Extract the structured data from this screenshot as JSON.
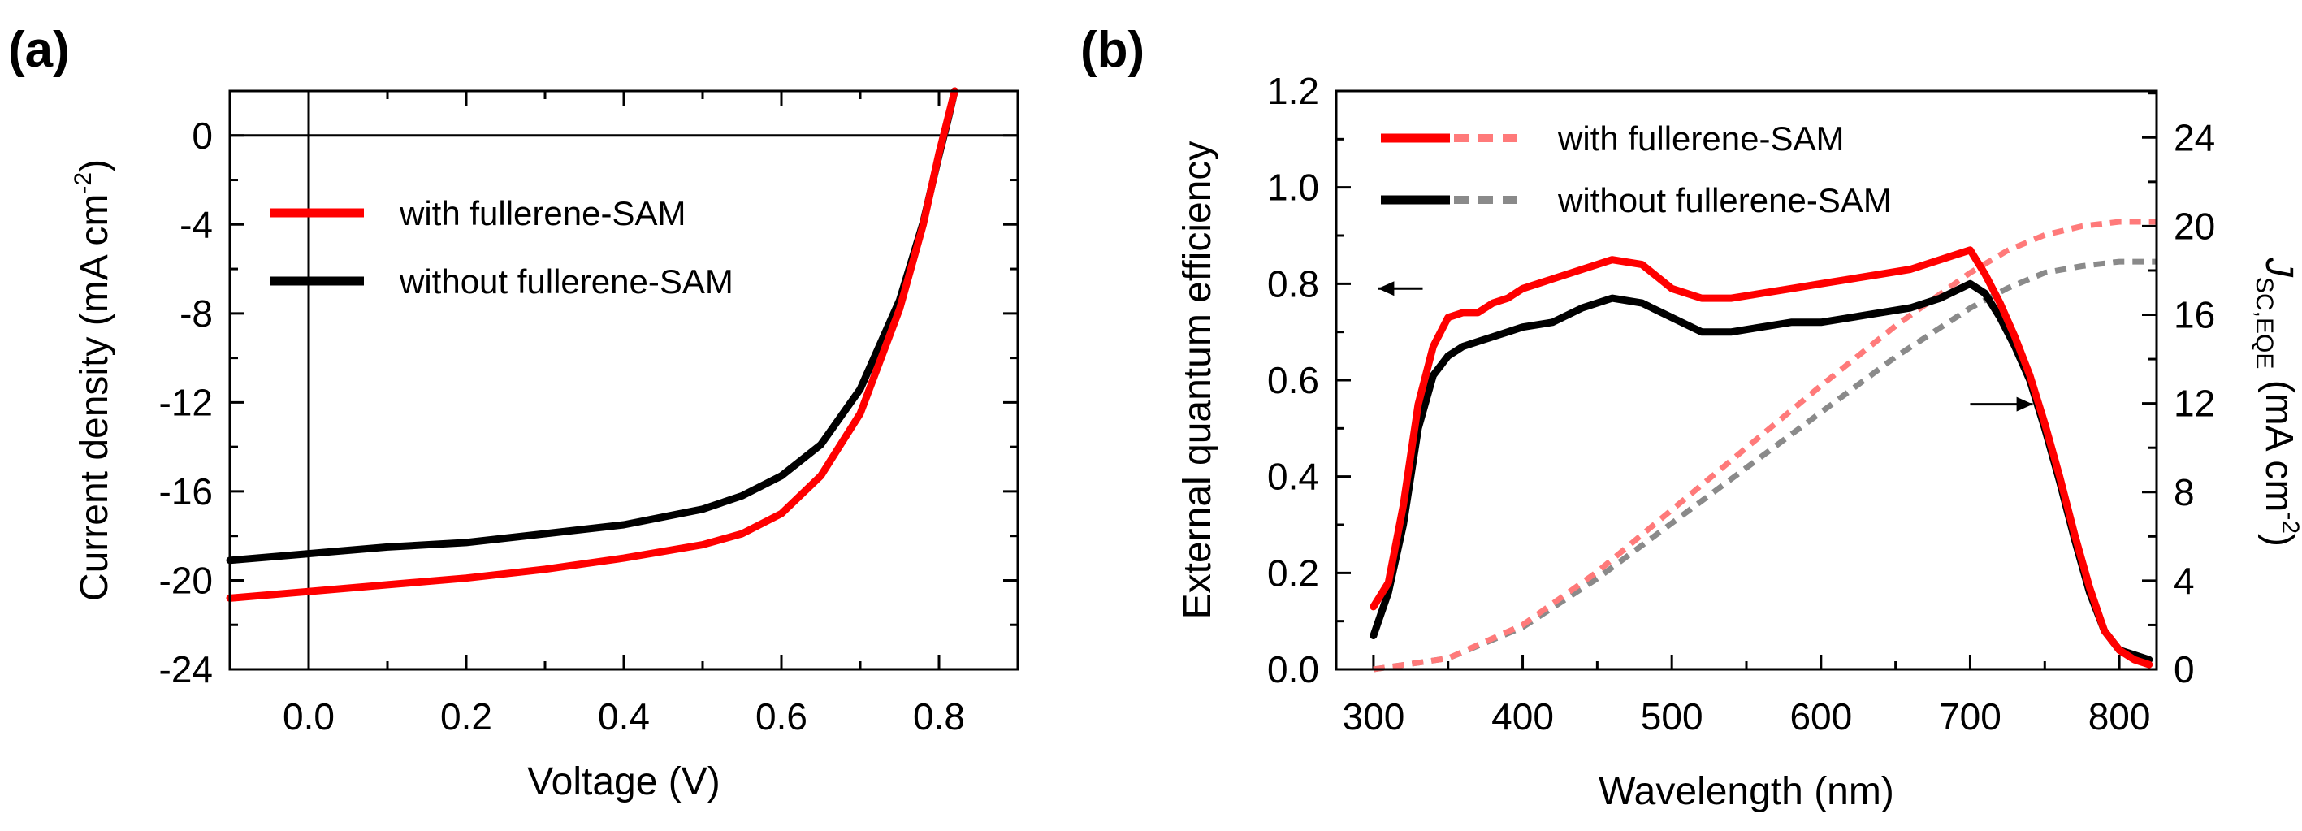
{
  "chart_data": [
    {
      "panel_label": "(a)",
      "type": "line",
      "title": "",
      "xlabel": "Voltage (V)",
      "ylabel": "Current density (mA cm",
      "ylabel_sup": "-2",
      "ylabel_end": ")",
      "xlim": [
        -0.1,
        0.9
      ],
      "ylim": [
        -24,
        2
      ],
      "xticks": [
        0.0,
        0.2,
        0.4,
        0.6,
        0.8
      ],
      "xtick_labels": [
        "0.0",
        "0.2",
        "0.4",
        "0.6",
        "0.8"
      ],
      "yticks": [
        0,
        -4,
        -8,
        -12,
        -16,
        -20,
        -24
      ],
      "ytick_labels": [
        "0",
        "-4",
        "-8",
        "-12",
        "-16",
        "-20",
        "-24"
      ],
      "grid": false,
      "legend_position": "upper-left",
      "reference_lines": {
        "y": 0,
        "x": 0
      },
      "series": [
        {
          "name": "with fullerene-SAM",
          "color": "#ff0000",
          "x": [
            -0.1,
            0.0,
            0.1,
            0.2,
            0.3,
            0.4,
            0.5,
            0.55,
            0.6,
            0.65,
            0.7,
            0.75,
            0.78,
            0.8,
            0.81,
            0.82
          ],
          "y": [
            -20.8,
            -20.5,
            -20.2,
            -19.9,
            -19.5,
            -19.0,
            -18.4,
            -17.9,
            -17.0,
            -15.3,
            -12.5,
            -7.8,
            -4.0,
            -0.8,
            0.6,
            2.0
          ]
        },
        {
          "name": "without fullerene-SAM",
          "color": "#000000",
          "x": [
            -0.1,
            0.0,
            0.1,
            0.2,
            0.3,
            0.4,
            0.5,
            0.55,
            0.6,
            0.65,
            0.7,
            0.75,
            0.78,
            0.8,
            0.81,
            0.82
          ],
          "y": [
            -19.1,
            -18.8,
            -18.5,
            -18.3,
            -17.9,
            -17.5,
            -16.8,
            -16.2,
            -15.3,
            -13.9,
            -11.4,
            -7.4,
            -3.9,
            -0.9,
            0.5,
            2.0
          ]
        }
      ]
    },
    {
      "panel_label": "(b)",
      "type": "line",
      "title": "",
      "xlabel": "Wavelength (nm)",
      "ylabel": "External  quantum efficiency",
      "y2label_main": "J",
      "y2label_sub": "SC,EQE",
      "y2label_unit": " (mA cm",
      "y2label_sup": "-2",
      "y2label_end": ")",
      "xlim": [
        275,
        825
      ],
      "ylim": [
        0,
        1.2
      ],
      "y2lim": [
        0,
        26.1
      ],
      "xticks": [
        300,
        400,
        500,
        600,
        700,
        800
      ],
      "xtick_labels": [
        "300",
        "400",
        "500",
        "600",
        "700",
        "800"
      ],
      "yticks": [
        0.0,
        0.2,
        0.4,
        0.6,
        0.8,
        1.0,
        1.2
      ],
      "ytick_labels": [
        "0.0",
        "0.2",
        "0.4",
        "0.6",
        "0.8",
        "1.0",
        "1.2"
      ],
      "y2ticks": [
        0,
        4,
        8,
        12,
        16,
        20,
        24
      ],
      "y2tick_labels": [
        "0",
        "4",
        "8",
        "12",
        "16",
        "20",
        "24"
      ],
      "grid": false,
      "legend_position": "upper-left",
      "annotations": [
        {
          "type": "arrow",
          "direction": "left",
          "x_from": 333,
          "x_to": 303,
          "y": 0.79,
          "axis": "left",
          "meaning": "EQE curves use left axis"
        },
        {
          "type": "arrow",
          "direction": "right",
          "x_from": 700,
          "x_to": 742,
          "y": 0.55,
          "axis": "left",
          "meaning": "integrated Jsc curves use right axis"
        }
      ],
      "series": [
        {
          "name": "with fullerene-SAM",
          "quantity": "EQE",
          "axis": "left",
          "style": "solid",
          "color": "#ff0000",
          "x": [
            300,
            310,
            320,
            330,
            340,
            350,
            360,
            370,
            380,
            390,
            400,
            420,
            440,
            460,
            480,
            500,
            520,
            540,
            560,
            580,
            600,
            620,
            640,
            660,
            680,
            700,
            710,
            720,
            730,
            740,
            750,
            760,
            770,
            780,
            790,
            800,
            810,
            820
          ],
          "y": [
            0.13,
            0.18,
            0.34,
            0.55,
            0.67,
            0.73,
            0.74,
            0.74,
            0.76,
            0.77,
            0.79,
            0.81,
            0.83,
            0.85,
            0.84,
            0.79,
            0.77,
            0.77,
            0.78,
            0.79,
            0.8,
            0.81,
            0.82,
            0.83,
            0.85,
            0.87,
            0.82,
            0.76,
            0.69,
            0.61,
            0.51,
            0.4,
            0.28,
            0.17,
            0.08,
            0.04,
            0.02,
            0.01
          ]
        },
        {
          "name": "without fullerene-SAM",
          "quantity": "EQE",
          "axis": "left",
          "style": "solid",
          "color": "#000000",
          "x": [
            300,
            310,
            320,
            330,
            340,
            350,
            360,
            370,
            380,
            390,
            400,
            420,
            440,
            460,
            480,
            500,
            520,
            540,
            560,
            580,
            600,
            620,
            640,
            660,
            680,
            700,
            710,
            720,
            730,
            740,
            750,
            760,
            770,
            780,
            790,
            800,
            810,
            820
          ],
          "y": [
            0.07,
            0.16,
            0.3,
            0.5,
            0.61,
            0.65,
            0.67,
            0.68,
            0.69,
            0.7,
            0.71,
            0.72,
            0.75,
            0.77,
            0.76,
            0.73,
            0.7,
            0.7,
            0.71,
            0.72,
            0.72,
            0.73,
            0.74,
            0.75,
            0.77,
            0.8,
            0.78,
            0.73,
            0.67,
            0.6,
            0.5,
            0.39,
            0.27,
            0.16,
            0.08,
            0.04,
            0.03,
            0.02
          ]
        },
        {
          "name": "with fullerene-SAM",
          "quantity": "integrated Jsc",
          "axis": "right",
          "style": "dashed",
          "color": "#ff7a7a",
          "x": [
            300,
            350,
            400,
            450,
            500,
            550,
            600,
            650,
            700,
            725,
            750,
            775,
            800,
            825
          ],
          "y": [
            0.0,
            0.5,
            2.0,
            4.4,
            7.2,
            10.0,
            12.8,
            15.5,
            17.9,
            18.9,
            19.6,
            20.0,
            20.2,
            20.2
          ]
        },
        {
          "name": "without fullerene-SAM",
          "quantity": "integrated Jsc",
          "axis": "right",
          "style": "dashed",
          "color": "#8a8a8a",
          "x": [
            300,
            350,
            400,
            450,
            500,
            550,
            600,
            650,
            700,
            725,
            750,
            775,
            800,
            825
          ],
          "y": [
            0.0,
            0.5,
            1.9,
            4.1,
            6.6,
            9.1,
            11.6,
            14.1,
            16.3,
            17.2,
            17.9,
            18.2,
            18.4,
            18.4
          ]
        }
      ]
    }
  ]
}
